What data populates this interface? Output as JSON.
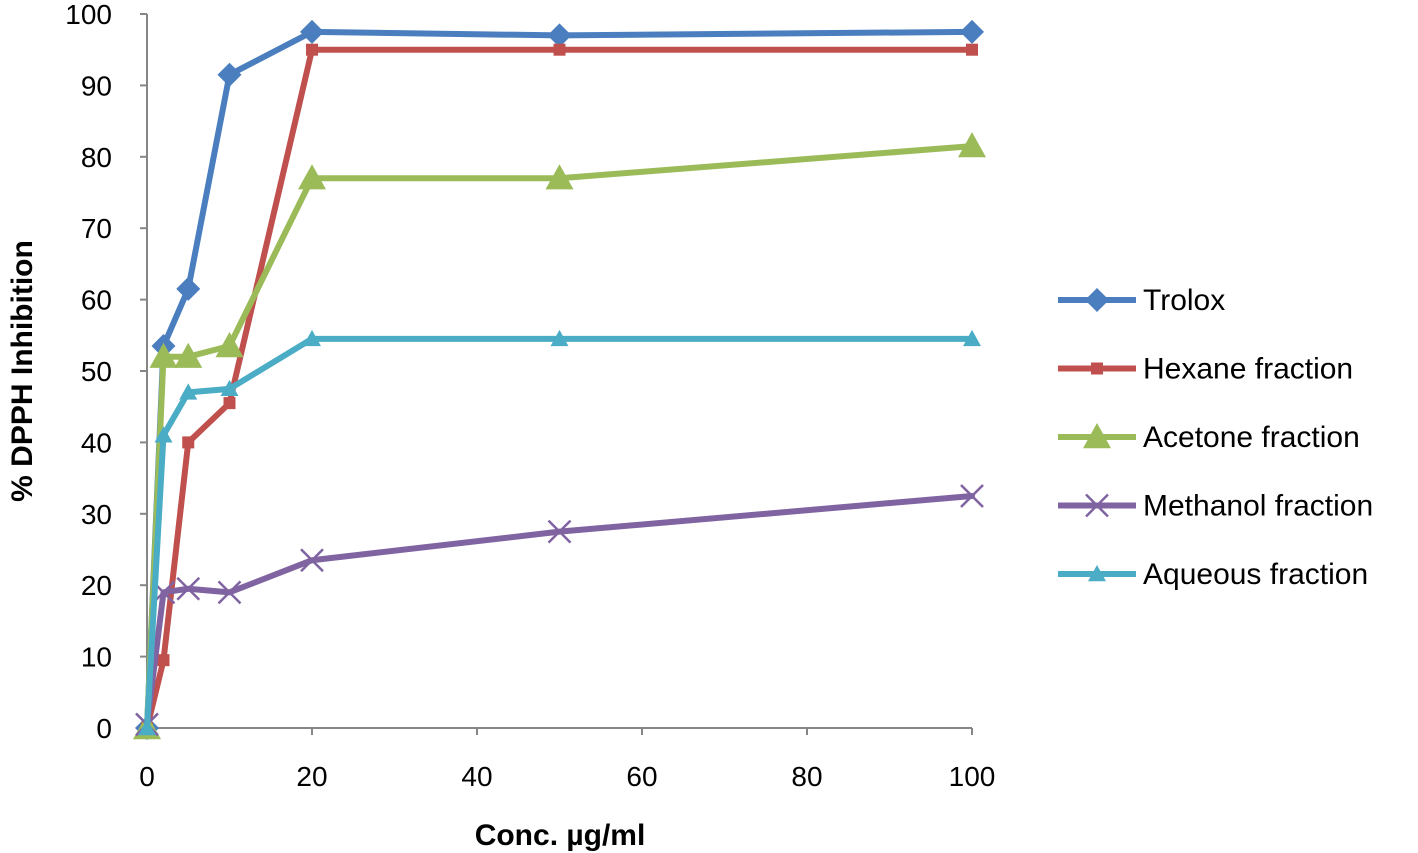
{
  "chart_data": {
    "type": "line",
    "title": "",
    "xlabel": "Conc. µg/ml",
    "ylabel": "% DPPH  Inhibition",
    "xlim": [
      0,
      100
    ],
    "ylim": [
      0,
      100
    ],
    "xticks": [
      0,
      20,
      40,
      60,
      80,
      100
    ],
    "yticks": [
      0,
      10,
      20,
      30,
      40,
      50,
      60,
      70,
      80,
      90,
      100
    ],
    "grid": false,
    "legend_position": "right",
    "series": [
      {
        "name": "Trolox",
        "color": "#4a7ebf",
        "marker": "diamond",
        "x": [
          0,
          2,
          5,
          10,
          20,
          50,
          100
        ],
        "y": [
          0,
          53.5,
          61.5,
          91.5,
          97.5,
          97,
          97.5
        ]
      },
      {
        "name": "Hexane fraction",
        "color": "#c0504d",
        "marker": "square",
        "x": [
          0,
          2,
          5,
          10,
          20,
          50,
          100
        ],
        "y": [
          0,
          9.5,
          40,
          45.5,
          95,
          95,
          95
        ]
      },
      {
        "name": "Acetone fraction",
        "color": "#9bbb59",
        "marker": "triangle",
        "x": [
          0,
          2,
          5,
          10,
          20,
          50,
          100
        ],
        "y": [
          0,
          52,
          52,
          53.5,
          77,
          77,
          81.5
        ]
      },
      {
        "name": "Methanol fraction",
        "color": "#8064a2",
        "marker": "x",
        "x": [
          0,
          2,
          5,
          10,
          20,
          50,
          100
        ],
        "y": [
          0.5,
          19,
          19.5,
          19,
          23.5,
          27.5,
          32.5
        ]
      },
      {
        "name": "Aqueous fraction",
        "color": "#4bacc6",
        "marker": "triangle-small",
        "x": [
          0,
          2,
          5,
          10,
          20,
          50,
          100
        ],
        "y": [
          0,
          41,
          47,
          47.5,
          54.5,
          54.5,
          54.5
        ]
      }
    ]
  }
}
